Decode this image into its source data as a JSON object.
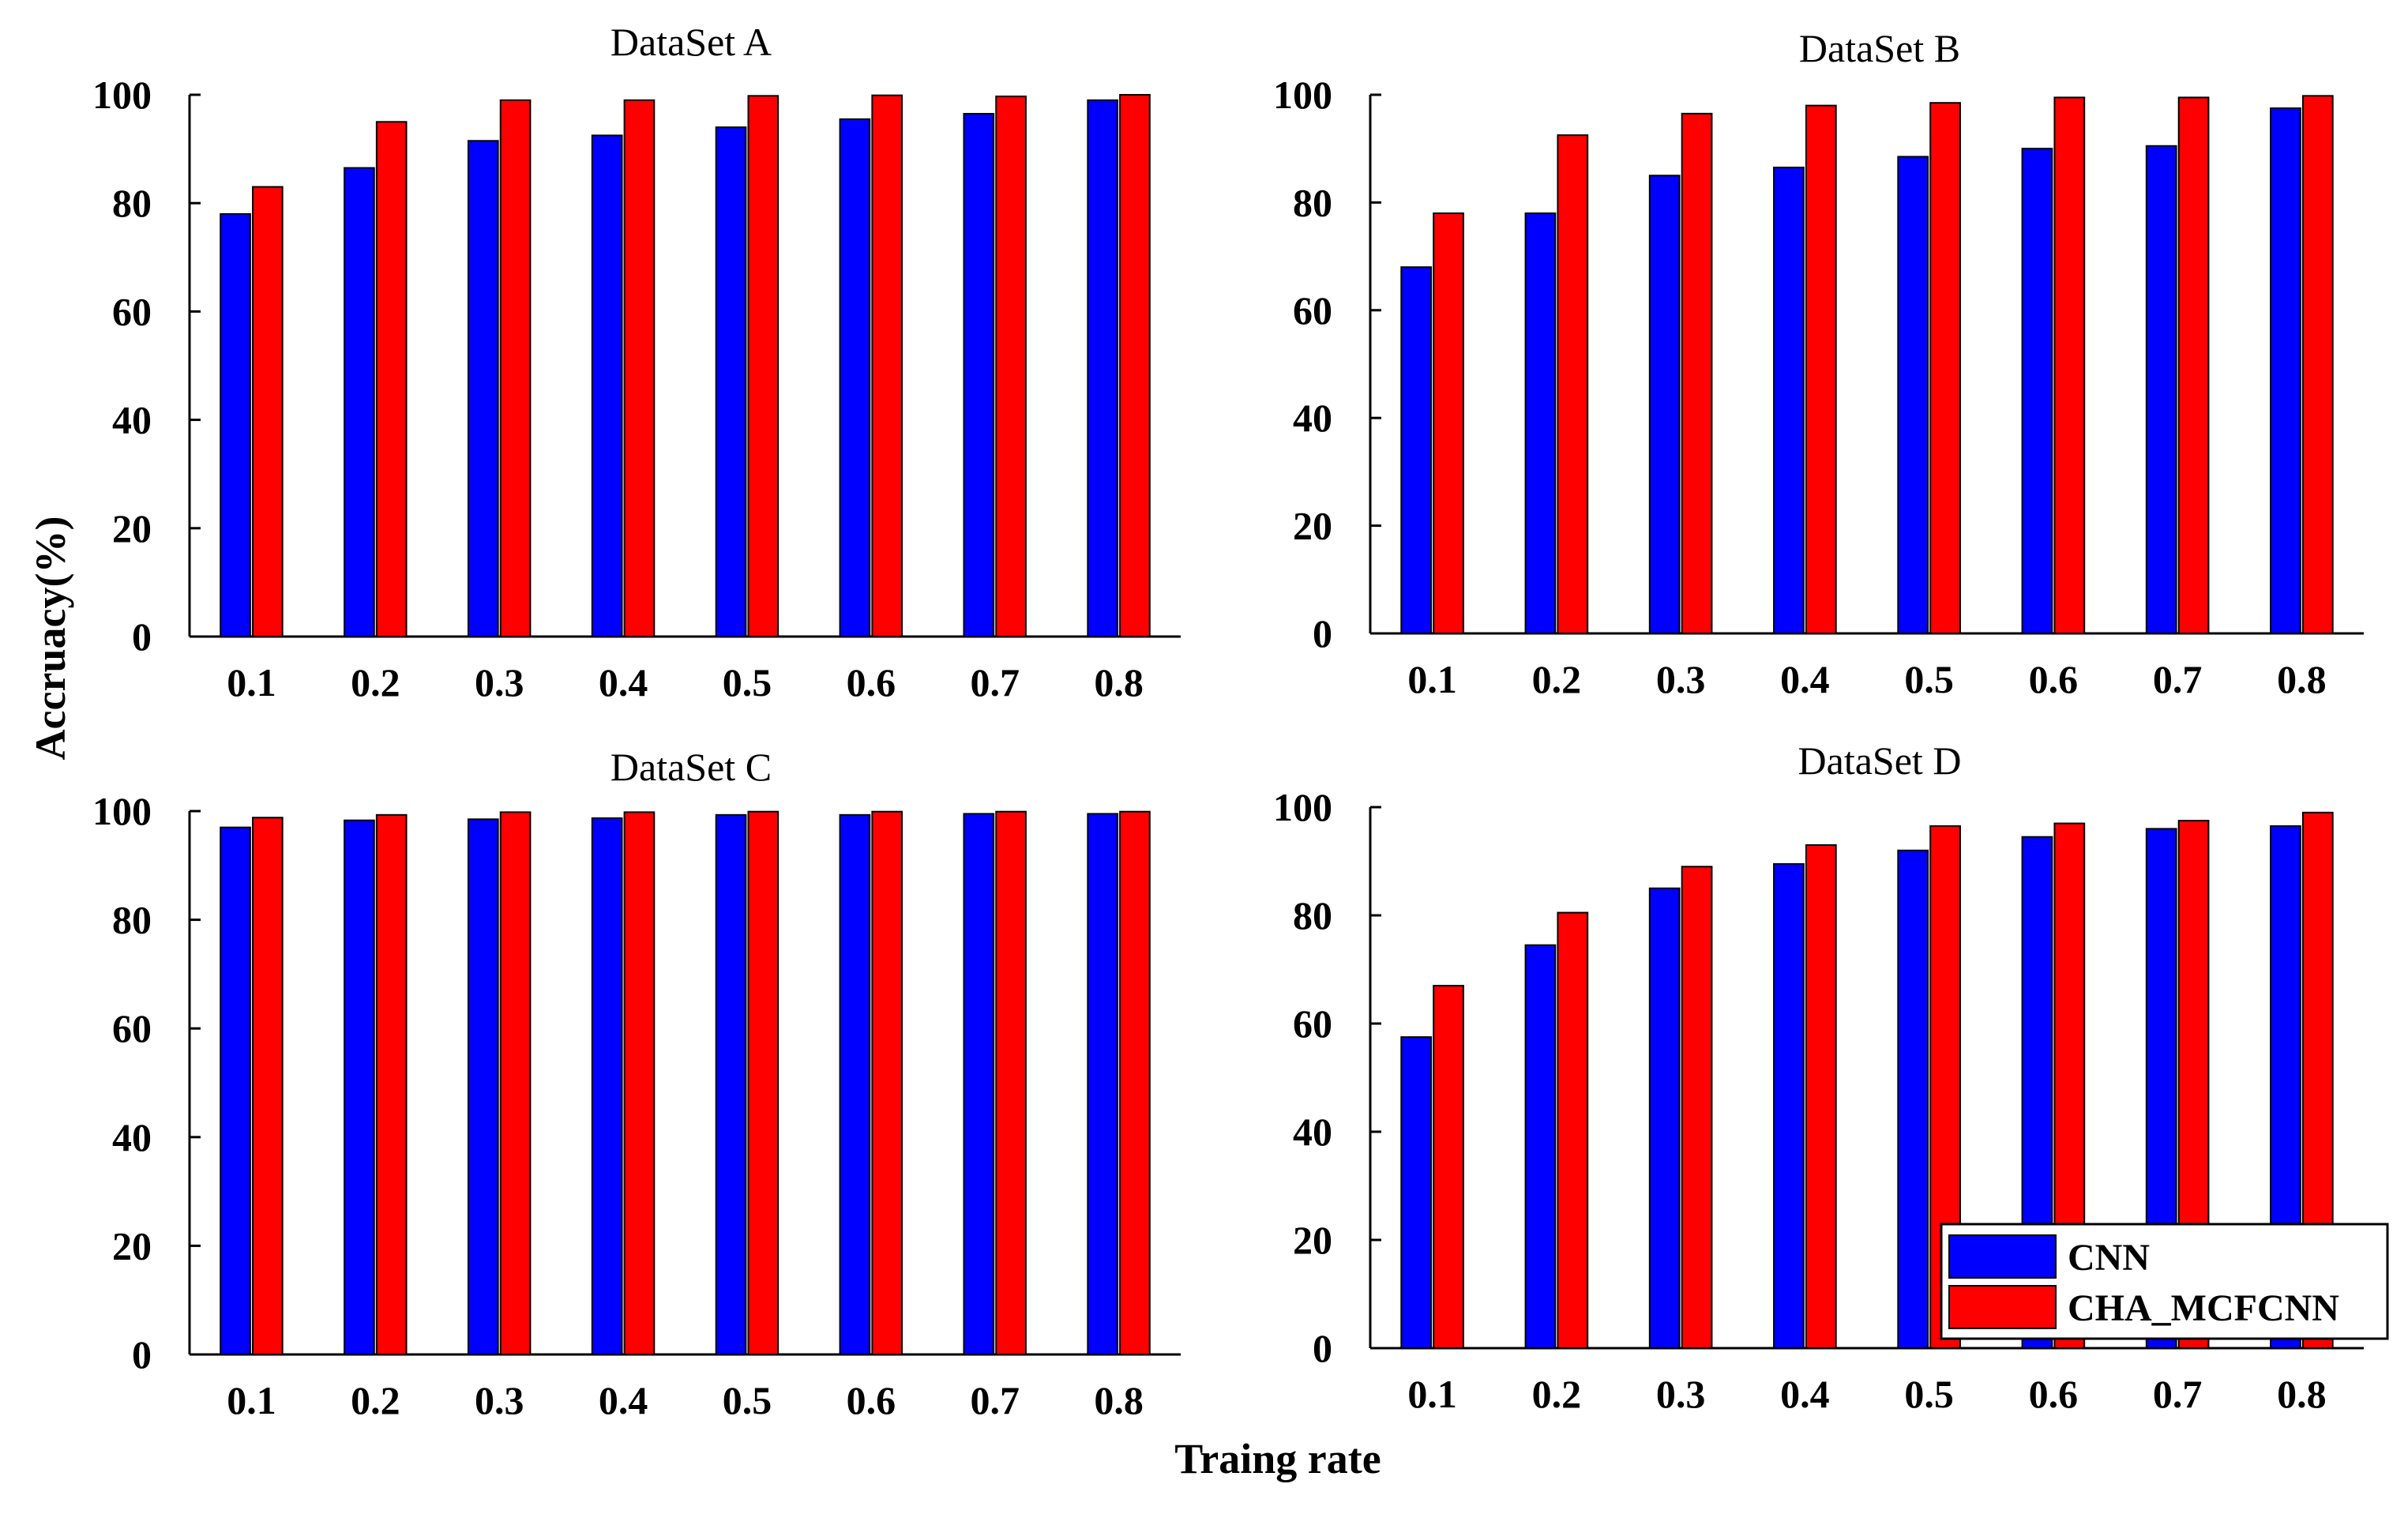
{
  "figure": {
    "ylabel": "Accruacy(%)",
    "xlabel": "Traing rate"
  },
  "colors": {
    "cnn": "#0000ff",
    "cha": "#ff0000"
  },
  "chart_data": [
    {
      "type": "bar",
      "title": "DataSet A",
      "categories": [
        "0.1",
        "0.2",
        "0.3",
        "0.4",
        "0.5",
        "0.6",
        "0.7",
        "0.8"
      ],
      "series": [
        {
          "name": "CNN",
          "values": [
            78,
            86.5,
            91.5,
            92.5,
            94,
            95.5,
            96.5,
            99
          ]
        },
        {
          "name": "CHA_MCFCNN",
          "values": [
            83,
            95,
            99,
            99,
            99.8,
            99.9,
            99.7,
            100
          ]
        }
      ],
      "ylim": [
        0,
        100
      ],
      "yticks": [
        "0",
        "20",
        "40",
        "60",
        "80",
        "100"
      ]
    },
    {
      "type": "bar",
      "title": "DataSet B",
      "categories": [
        "0.1",
        "0.2",
        "0.3",
        "0.4",
        "0.5",
        "0.6",
        "0.7",
        "0.8"
      ],
      "series": [
        {
          "name": "CNN",
          "values": [
            68,
            78,
            85,
            86.5,
            88.5,
            90,
            90.5,
            97.5
          ]
        },
        {
          "name": "CHA_MCFCNN",
          "values": [
            78,
            92.5,
            96.5,
            98,
            98.5,
            99.5,
            99.5,
            99.8
          ]
        }
      ],
      "ylim": [
        0,
        100
      ],
      "yticks": [
        "0",
        "20",
        "40",
        "60",
        "80",
        "100"
      ]
    },
    {
      "type": "bar",
      "title": "DataSet C",
      "categories": [
        "0.1",
        "0.2",
        "0.3",
        "0.4",
        "0.5",
        "0.6",
        "0.7",
        "0.8"
      ],
      "series": [
        {
          "name": "CNN",
          "values": [
            97,
            98.3,
            98.5,
            98.7,
            99.3,
            99.3,
            99.5,
            99.5
          ]
        },
        {
          "name": "CHA_MCFCNN",
          "values": [
            98.8,
            99.3,
            99.8,
            99.8,
            99.9,
            99.9,
            99.9,
            99.9
          ]
        }
      ],
      "ylim": [
        0,
        100
      ],
      "yticks": [
        "0",
        "20",
        "40",
        "60",
        "80",
        "100"
      ]
    },
    {
      "type": "bar",
      "title": "DataSet D",
      "categories": [
        "0.1",
        "0.2",
        "0.3",
        "0.4",
        "0.5",
        "0.6",
        "0.7",
        "0.8"
      ],
      "series": [
        {
          "name": "CNN",
          "values": [
            57.5,
            74.5,
            85,
            89.5,
            92,
            94.5,
            96,
            96.5
          ]
        },
        {
          "name": "CHA_MCFCNN",
          "values": [
            67,
            80.5,
            89,
            93,
            96.5,
            97,
            97.5,
            99
          ]
        }
      ],
      "ylim": [
        0,
        100
      ],
      "yticks": [
        "0",
        "20",
        "40",
        "60",
        "80",
        "100"
      ],
      "legend": {
        "position": "bottom-right",
        "entries": [
          "CNN",
          "CHA_MCFCNN"
        ]
      }
    }
  ]
}
